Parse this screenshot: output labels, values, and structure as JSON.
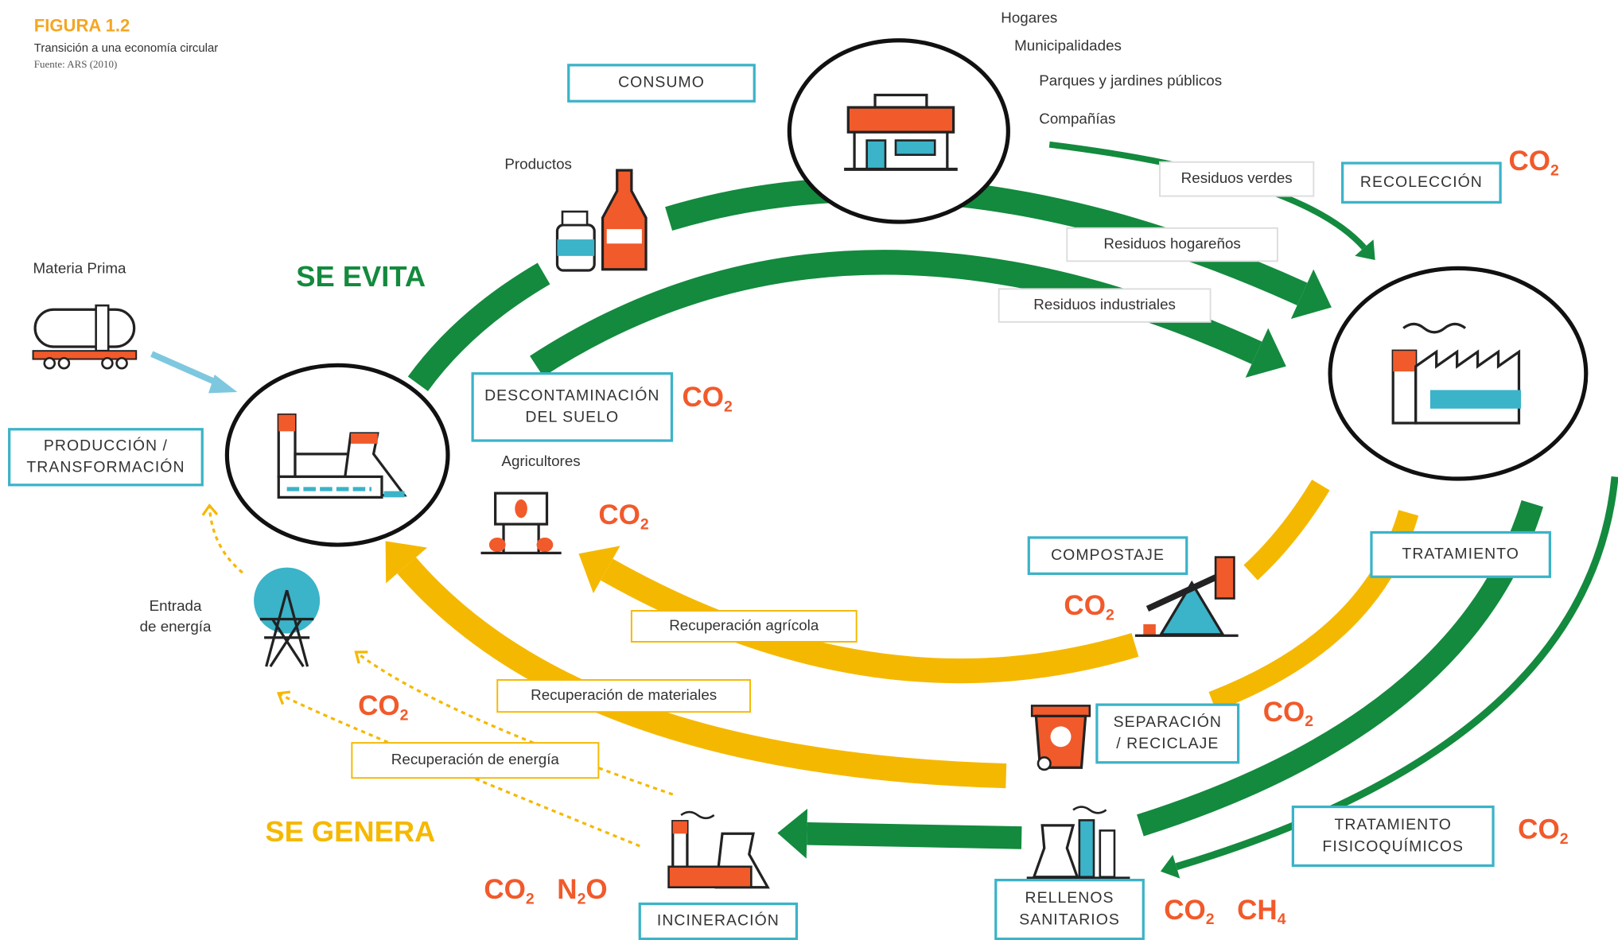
{
  "header": {
    "figure": "FIGURA 1.2",
    "title": "Transición a una economía circular",
    "source": "Fuente: ARS (2010)"
  },
  "headings": [
    "SE EVITA",
    "SE GENERA"
  ],
  "stages": [
    [
      "CONSUMO"
    ],
    [
      "RECOLECCIÓN"
    ],
    [
      "DESCONTAMINACIÓN",
      "DEL SUELO"
    ],
    [
      "PRODUCCIÓN /",
      "TRANSFORMACIÓN"
    ],
    [
      "COMPOSTAJE"
    ],
    [
      "TRATAMIENTO"
    ],
    [
      "SEPARACIÓN",
      "/ RECICLAJE"
    ],
    [
      "TRATAMIENTO",
      "FISICOQUÍMICOS"
    ],
    [
      "RELLENOS",
      "SANITARIOS"
    ],
    [
      "INCINERACIÓN"
    ]
  ],
  "flows": [
    "Residuos verdes",
    "Residuos hogareños",
    "Residuos industriales",
    "Recuperación agrícola",
    "Recuperación de materiales",
    "Recuperación de energía"
  ],
  "labels": [
    "Hogares",
    "Municipalidades",
    "Parques y jardines públicos",
    "Compañías",
    "Productos",
    "Materia Prima",
    "Agricultores",
    "Entrada",
    "de energía"
  ],
  "emissions": [
    [
      [
        "CO",
        "2"
      ]
    ],
    [
      [
        "CO",
        "2"
      ]
    ],
    [
      [
        "CO",
        "2"
      ]
    ],
    [
      [
        "CO",
        "2"
      ]
    ],
    [
      [
        "CO",
        "2"
      ]
    ],
    [
      [
        "CO",
        "2"
      ]
    ],
    [
      [
        "CO",
        "2"
      ]
    ],
    [
      [
        "CO",
        "2"
      ],
      [
        "N",
        "2",
        "O"
      ]
    ],
    [
      [
        "CO",
        "2"
      ],
      [
        "CH",
        "4"
      ]
    ]
  ]
}
